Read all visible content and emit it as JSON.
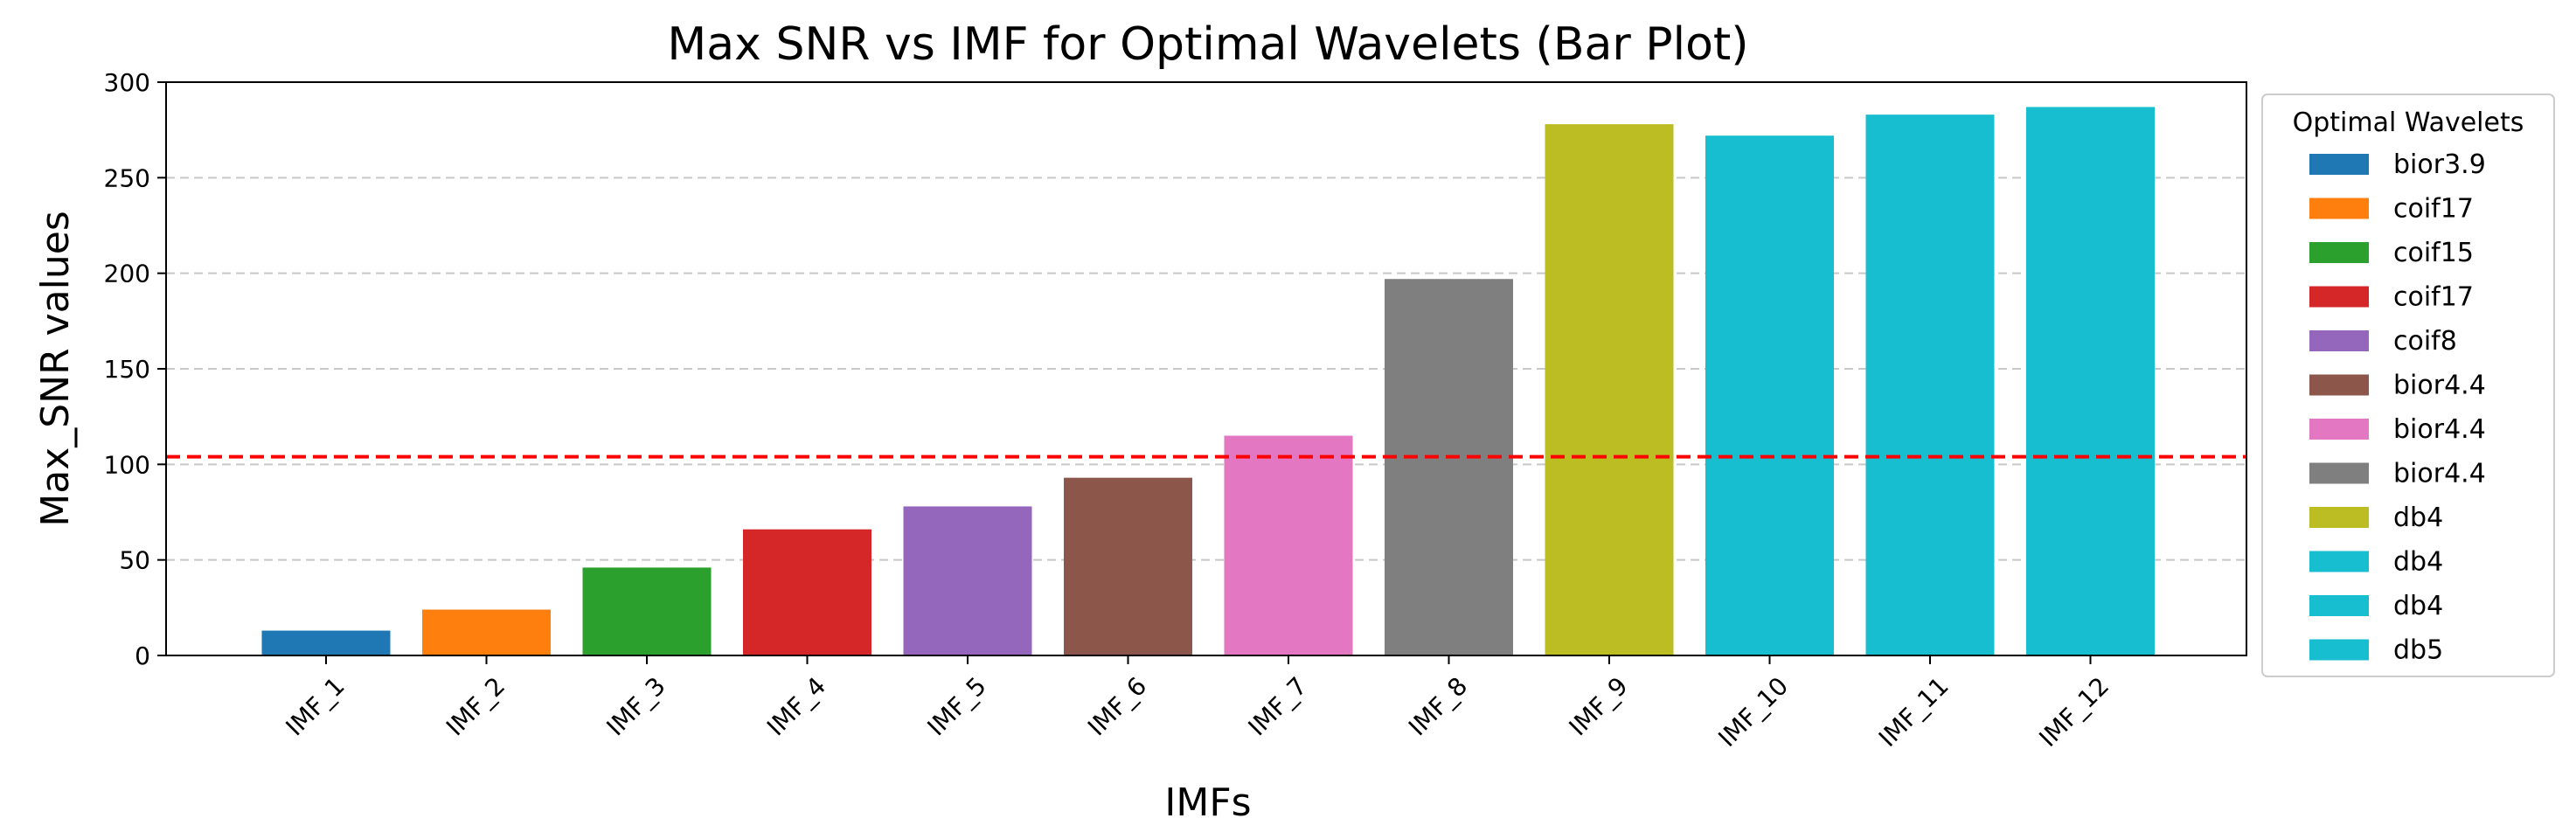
{
  "chart_data": {
    "type": "bar",
    "title": "Max SNR vs IMF for Optimal Wavelets (Bar Plot)",
    "xlabel": "IMFs",
    "ylabel": "Max_SNR values",
    "ylim": [
      0,
      300
    ],
    "yticks": [
      0,
      50,
      100,
      150,
      200,
      250,
      300
    ],
    "grid": "y-dashed",
    "threshold_line": {
      "value": 104,
      "color": "#ff0000",
      "style": "dashed"
    },
    "categories": [
      "IMF_1",
      "IMF_2",
      "IMF_3",
      "IMF_4",
      "IMF_5",
      "IMF_6",
      "IMF_7",
      "IMF_8",
      "IMF_9",
      "IMF_10",
      "IMF_11",
      "IMF_12"
    ],
    "values": [
      13,
      24,
      46,
      66,
      78,
      93,
      115,
      197,
      278,
      272,
      283,
      287
    ],
    "wavelets": [
      "bior3.9",
      "coif17",
      "coif15",
      "coif17",
      "coif8",
      "bior4.4",
      "bior4.4",
      "bior4.4",
      "db4",
      "db4",
      "db4",
      "db5"
    ],
    "colors": [
      "#1f77b4",
      "#ff7f0e",
      "#2ca02c",
      "#d62728",
      "#9467bd",
      "#8c564b",
      "#e377c2",
      "#7f7f7f",
      "#bcbd22",
      "#17becf",
      "#17becf",
      "#17becf"
    ],
    "legend": {
      "title": "Optimal Wavelets",
      "placement": "outside-right-top",
      "entries": [
        "bior3.9",
        "coif17",
        "coif15",
        "coif17",
        "coif8",
        "bior4.4",
        "bior4.4",
        "bior4.4",
        "db4",
        "db4",
        "db4",
        "db5"
      ]
    }
  }
}
